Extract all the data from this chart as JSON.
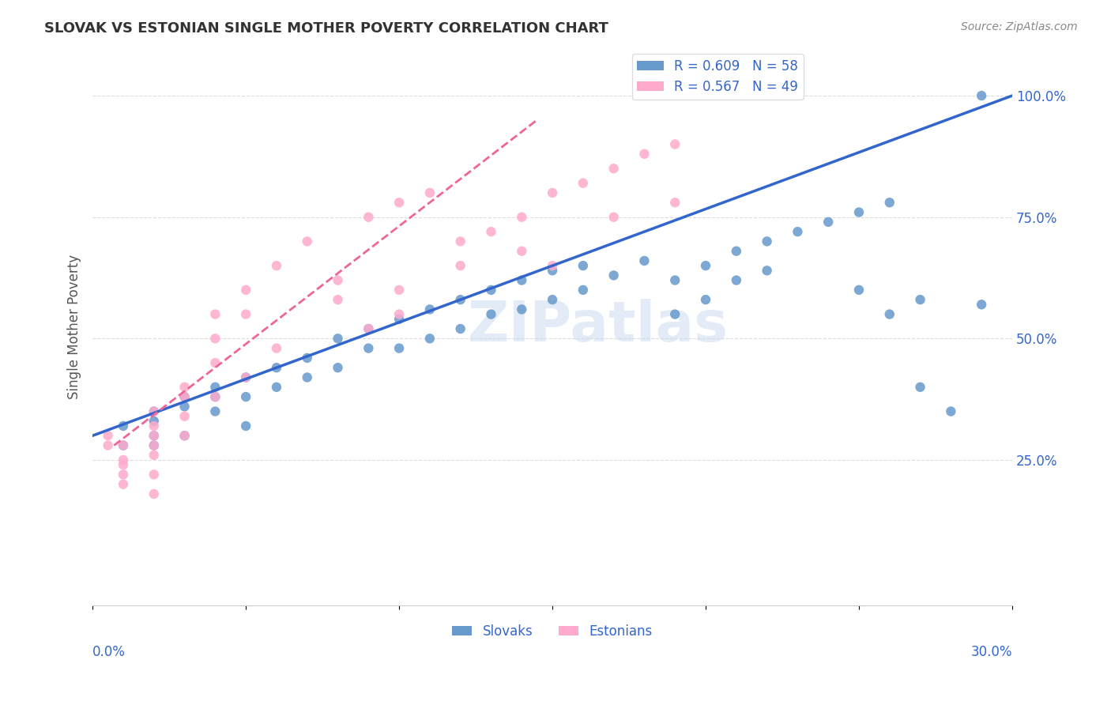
{
  "title": "SLOVAK VS ESTONIAN SINGLE MOTHER POVERTY CORRELATION CHART",
  "source": "Source: ZipAtlas.com",
  "xlabel": "",
  "ylabel": "Single Mother Poverty",
  "xlim": [
    0.0,
    0.3
  ],
  "ylim": [
    -0.05,
    1.1
  ],
  "xticks": [
    0.0,
    0.05,
    0.1,
    0.15,
    0.2,
    0.25,
    0.3
  ],
  "xticklabels": [
    "0.0%",
    "",
    "",
    "",
    "",
    "",
    "30.0%"
  ],
  "yticks_right": [
    0.25,
    0.5,
    0.75,
    1.0
  ],
  "ytick_labels_right": [
    "25.0%",
    "50.0%",
    "75.0%",
    "100.0%"
  ],
  "blue_R": 0.609,
  "blue_N": 58,
  "pink_R": 0.567,
  "pink_N": 49,
  "blue_color": "#6699cc",
  "pink_color": "#ffaacc",
  "blue_line_color": "#3366cc",
  "pink_line_color": "#ee6699",
  "background_color": "#ffffff",
  "grid_color": "#dddddd",
  "title_color": "#333333",
  "watermark": "ZIPatlas",
  "legend_slovak": "Slovaks",
  "legend_estonian": "Estonians",
  "blue_scatter_x": [
    0.01,
    0.01,
    0.02,
    0.02,
    0.02,
    0.02,
    0.03,
    0.03,
    0.03,
    0.04,
    0.04,
    0.04,
    0.05,
    0.05,
    0.05,
    0.06,
    0.06,
    0.07,
    0.07,
    0.08,
    0.08,
    0.09,
    0.09,
    0.1,
    0.1,
    0.11,
    0.11,
    0.12,
    0.12,
    0.13,
    0.13,
    0.14,
    0.14,
    0.15,
    0.15,
    0.16,
    0.16,
    0.17,
    0.18,
    0.19,
    0.19,
    0.2,
    0.2,
    0.21,
    0.21,
    0.22,
    0.22,
    0.23,
    0.24,
    0.25,
    0.25,
    0.26,
    0.26,
    0.27,
    0.28,
    0.27,
    0.29,
    0.29
  ],
  "blue_scatter_y": [
    0.32,
    0.28,
    0.35,
    0.3,
    0.33,
    0.28,
    0.36,
    0.38,
    0.3,
    0.38,
    0.4,
    0.35,
    0.42,
    0.38,
    0.32,
    0.44,
    0.4,
    0.46,
    0.42,
    0.5,
    0.44,
    0.48,
    0.52,
    0.54,
    0.48,
    0.56,
    0.5,
    0.58,
    0.52,
    0.6,
    0.55,
    0.62,
    0.56,
    0.64,
    0.58,
    0.65,
    0.6,
    0.63,
    0.66,
    0.55,
    0.62,
    0.65,
    0.58,
    0.68,
    0.62,
    0.7,
    0.64,
    0.72,
    0.74,
    0.76,
    0.6,
    0.78,
    0.55,
    0.58,
    0.35,
    0.4,
    0.57,
    1.0
  ],
  "pink_scatter_x": [
    0.005,
    0.005,
    0.01,
    0.01,
    0.01,
    0.01,
    0.01,
    0.02,
    0.02,
    0.02,
    0.02,
    0.02,
    0.02,
    0.02,
    0.03,
    0.03,
    0.03,
    0.03,
    0.04,
    0.04,
    0.04,
    0.04,
    0.05,
    0.05,
    0.05,
    0.06,
    0.06,
    0.07,
    0.08,
    0.08,
    0.09,
    0.09,
    0.1,
    0.1,
    0.1,
    0.11,
    0.12,
    0.12,
    0.13,
    0.14,
    0.14,
    0.15,
    0.15,
    0.16,
    0.17,
    0.17,
    0.18,
    0.19,
    0.19
  ],
  "pink_scatter_y": [
    0.28,
    0.3,
    0.2,
    0.25,
    0.28,
    0.22,
    0.24,
    0.26,
    0.3,
    0.28,
    0.32,
    0.35,
    0.22,
    0.18,
    0.38,
    0.4,
    0.3,
    0.34,
    0.45,
    0.5,
    0.38,
    0.55,
    0.6,
    0.42,
    0.55,
    0.65,
    0.48,
    0.7,
    0.58,
    0.62,
    0.75,
    0.52,
    0.78,
    0.6,
    0.55,
    0.8,
    0.7,
    0.65,
    0.72,
    0.68,
    0.75,
    0.8,
    0.65,
    0.82,
    0.85,
    0.75,
    0.88,
    0.9,
    0.78
  ],
  "blue_line_x": [
    0.0,
    0.3
  ],
  "blue_line_y": [
    0.3,
    1.0
  ],
  "pink_line_x": [
    0.007,
    0.145
  ],
  "pink_line_y": [
    0.28,
    0.95
  ]
}
